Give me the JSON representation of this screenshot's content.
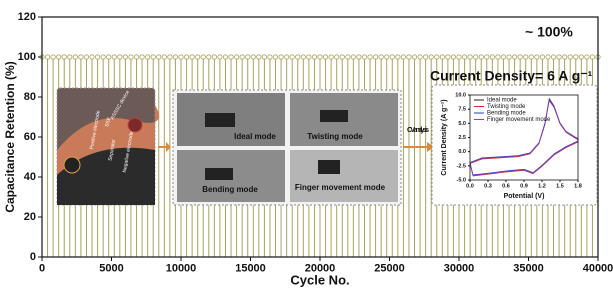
{
  "chart_data": [
    {
      "type": "stem",
      "xlabel": "Cycle No.",
      "ylabel": "Capacitance Retention (%)",
      "annotations": [
        "~ 100%",
        "Current  Density= 6 A g⁻¹"
      ],
      "arrow_label": "CV analysis",
      "schematic_labels": [
        "ASSSC device",
        "SSE",
        "Positive electrode",
        "Separator",
        "Negative electrode"
      ],
      "photo_labels": [
        "Ideal mode",
        "Twisting mode",
        "Bending mode",
        "Finger movement  mode"
      ],
      "color": "#a8a35a",
      "x": [
        0,
        400,
        800,
        1200,
        1600,
        2000,
        2400,
        2800,
        3200,
        3600,
        4000,
        4400,
        4800,
        5200,
        5600,
        6000,
        6400,
        6800,
        7200,
        7600,
        8000,
        8400,
        8800,
        9200,
        9600,
        10000,
        10400,
        10800,
        11200,
        11600,
        12000,
        12400,
        12800,
        13200,
        13600,
        14000,
        14400,
        14800,
        15200,
        15600,
        16000,
        16400,
        16800,
        17200,
        17600,
        18000,
        18400,
        18800,
        19200,
        19600,
        20000,
        20400,
        20800,
        21200,
        21600,
        22000,
        22400,
        22800,
        23200,
        23600,
        24000,
        24400,
        24800,
        25200,
        25600,
        26000,
        26400,
        26800,
        27200,
        27600,
        28000,
        28400,
        28800,
        29200,
        29600,
        30000,
        30400,
        30800,
        31200,
        31600,
        32000,
        32400,
        32800,
        33200,
        33600,
        34000,
        34400,
        34800,
        35200,
        35600,
        36000,
        36400,
        36800,
        37200,
        37600,
        38000,
        38400,
        38800,
        39200,
        39600,
        40000
      ],
      "values": [
        100,
        100,
        100,
        100,
        100,
        100,
        100,
        100,
        100,
        100,
        100,
        100,
        100,
        100,
        100,
        100,
        100,
        100,
        100,
        100,
        100,
        100,
        100,
        100,
        100,
        100,
        100,
        100,
        100,
        100,
        100,
        100,
        100,
        100,
        100,
        100,
        100,
        100,
        100,
        100,
        100,
        100,
        100,
        100,
        100,
        100,
        100,
        100,
        100,
        100,
        100,
        100,
        100,
        100,
        100,
        100,
        100,
        100,
        100,
        100,
        100,
        100,
        100,
        100,
        100,
        100,
        100,
        100,
        100,
        100,
        100,
        100,
        100,
        100,
        100,
        100,
        100,
        100,
        100,
        100,
        100,
        100,
        100,
        100,
        100,
        100,
        100,
        100,
        100,
        100,
        100,
        100,
        100,
        100,
        100,
        100,
        100,
        100,
        100,
        100,
        100
      ],
      "xlim": [
        0,
        40000
      ],
      "xticks": [
        0,
        5000,
        10000,
        15000,
        20000,
        25000,
        30000,
        35000,
        40000
      ],
      "ylim": [
        0,
        120
      ],
      "yticks": [
        0,
        20,
        40,
        60,
        80,
        100,
        120
      ]
    },
    {
      "type": "line",
      "xlabel": "Potential (V)",
      "ylabel": "Current Density (A g⁻¹)",
      "xlim": [
        0,
        1.8
      ],
      "xticks": [
        {
          "value": 0,
          "label": "0.0"
        },
        0.3,
        0.6,
        0.9,
        1.2,
        1.5,
        1.8
      ],
      "ylim": [
        -5,
        10
      ],
      "yticks": [
        {
          "value": -5,
          "label": "-5.0"
        },
        -2.5,
        {
          "value": 0,
          "label": "0.0"
        },
        2.5,
        {
          "value": 5,
          "label": "5.0"
        },
        7.5,
        {
          "value": 10,
          "label": "10.0"
        }
      ],
      "series": [
        {
          "name": "Ideal mode",
          "color": "#222222",
          "x": [
            0,
            0.2,
            0.5,
            0.8,
            1.0,
            1.15,
            1.25,
            1.32,
            1.4,
            1.5,
            1.6,
            1.75,
            1.8,
            1.8,
            1.6,
            1.4,
            1.2,
            1.05,
            0.9,
            0.6,
            0.3,
            0.05,
            0
          ],
          "values": [
            -2,
            -1.2,
            -1,
            -0.8,
            -0.3,
            1.5,
            5,
            9.2,
            8,
            5,
            3.5,
            2.5,
            2.2,
            1.8,
            0.8,
            -0.5,
            -2.5,
            -3.8,
            -3.2,
            -3.5,
            -3.9,
            -4.2,
            -2
          ]
        },
        {
          "name": "Twisting mode",
          "color": "#d62728",
          "x": [
            0,
            0.2,
            0.5,
            0.8,
            1.0,
            1.15,
            1.25,
            1.32,
            1.4,
            1.5,
            1.6,
            1.75,
            1.8,
            1.8,
            1.6,
            1.4,
            1.2,
            1.05,
            0.9,
            0.6,
            0.3,
            0.05,
            0
          ],
          "values": [
            -2.1,
            -1.3,
            -1.1,
            -0.9,
            -0.4,
            1.4,
            4.8,
            9,
            7.8,
            4.9,
            3.4,
            2.4,
            2.1,
            1.7,
            0.7,
            -0.6,
            -2.6,
            -3.9,
            -3.3,
            -3.6,
            -4,
            -4.3,
            -2.1
          ]
        },
        {
          "name": "Bending mode",
          "color": "#1f3fbf",
          "x": [
            0,
            0.2,
            0.5,
            0.8,
            1.0,
            1.15,
            1.25,
            1.32,
            1.4,
            1.5,
            1.6,
            1.75,
            1.8,
            1.8,
            1.6,
            1.4,
            1.2,
            1.05,
            0.9,
            0.6,
            0.3,
            0.05,
            0
          ],
          "values": [
            -1.9,
            -1.1,
            -0.9,
            -0.7,
            -0.2,
            1.6,
            5.1,
            9.4,
            8.1,
            5.1,
            3.6,
            2.6,
            2.3,
            1.9,
            0.9,
            -0.4,
            -2.4,
            -3.7,
            -3.1,
            -3.4,
            -3.8,
            -4.1,
            -1.9
          ]
        },
        {
          "name": "Finger movement mode",
          "color": "#8c3fbf",
          "x": [
            0,
            0.2,
            0.5,
            0.8,
            1.0,
            1.15,
            1.25,
            1.32,
            1.4,
            1.5,
            1.6,
            1.75,
            1.8,
            1.8,
            1.6,
            1.4,
            1.2,
            1.05,
            0.9,
            0.6,
            0.3,
            0.05,
            0
          ],
          "values": [
            -2,
            -1.2,
            -1,
            -0.8,
            -0.3,
            1.5,
            4.9,
            9.1,
            7.9,
            5,
            3.5,
            2.5,
            2.2,
            1.8,
            0.8,
            -0.5,
            -2.5,
            -3.8,
            -3.2,
            -3.5,
            -3.9,
            -4.2,
            -2
          ]
        }
      ]
    }
  ]
}
